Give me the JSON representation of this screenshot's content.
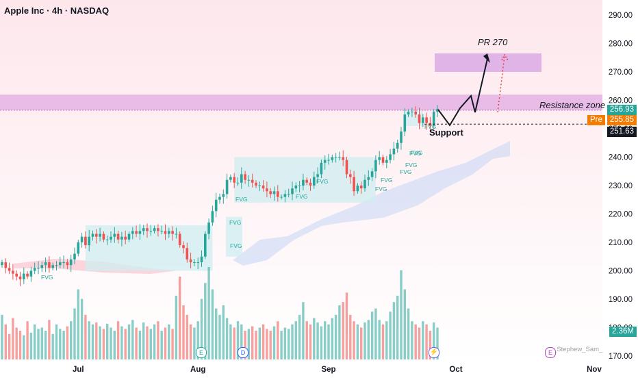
{
  "header": {
    "title": "Apple Inc · 4h · NASDAQ"
  },
  "colors": {
    "up": "#26a69a",
    "down": "#ef5350",
    "background_top": "#fde7ec",
    "resistance_zone": "#d99be0",
    "target_zone": "#d9a6e6",
    "fvg_box": "#cfeef0",
    "cloud": "#c5d5f5",
    "last_price": "#26a69a",
    "pre_market": "#f57c00",
    "support_label": "#131722"
  },
  "chart_data": {
    "type": "candlestick",
    "title": "Apple Inc · 4h · NASDAQ",
    "xlabel": "",
    "ylabel": "",
    "x_tick_labels": [
      "Jul",
      "Aug",
      "Sep",
      "Oct",
      "Nov"
    ],
    "y_tick_labels": [
      "290.00",
      "280.00",
      "270.00",
      "260.00",
      "250.00",
      "240.00",
      "230.00",
      "220.00",
      "210.00",
      "200.00",
      "190.00",
      "180.00",
      "170.00"
    ],
    "ylim": [
      170,
      292
    ],
    "grid": false,
    "series": [
      {
        "name": "AAPL",
        "close": [
          203,
          201,
          200,
          199,
          198,
          197,
          199,
          198,
          200,
          201,
          201,
          202,
          203,
          201,
          202,
          202,
          203,
          203,
          202,
          204,
          206,
          210,
          212,
          209,
          212,
          213,
          212,
          213,
          211,
          211,
          212,
          213,
          211,
          212,
          211,
          213,
          214,
          213,
          214,
          215,
          214,
          214,
          215,
          214,
          214,
          213,
          214,
          213,
          213,
          209,
          208,
          204,
          203,
          203,
          203,
          205,
          213,
          217,
          221,
          225,
          226,
          227,
          232,
          233,
          231,
          231,
          234,
          232,
          232,
          231,
          230,
          230,
          229,
          228,
          227,
          228,
          226,
          226,
          227,
          227,
          229,
          230,
          230,
          232,
          231,
          230,
          233,
          234,
          238,
          239,
          239,
          240,
          240,
          240,
          239,
          234,
          233,
          228,
          230,
          229,
          232,
          233,
          235,
          239,
          240,
          238,
          239,
          241,
          243,
          245,
          249,
          255,
          256,
          256,
          255,
          252,
          254,
          252,
          251,
          256,
          256.93
        ]
      }
    ],
    "volume": [
      70,
      55,
      40,
      65,
      50,
      45,
      38,
      60,
      42,
      55,
      48,
      50,
      45,
      62,
      40,
      55,
      48,
      45,
      52,
      60,
      80,
      110,
      95,
      70,
      60,
      55,
      58,
      52,
      48,
      56,
      50,
      45,
      60,
      52,
      48,
      55,
      62,
      50,
      45,
      58,
      52,
      48,
      55,
      60,
      45,
      50,
      55,
      48,
      100,
      130,
      85,
      70,
      55,
      50,
      60,
      95,
      120,
      145,
      110,
      80,
      70,
      85,
      65,
      55,
      50,
      60,
      55,
      45,
      48,
      52,
      45,
      50,
      55,
      48,
      45,
      52,
      60,
      45,
      50,
      48,
      55,
      60,
      70,
      90,
      60,
      55,
      65,
      58,
      52,
      60,
      55,
      65,
      70,
      85,
      90,
      105,
      70,
      60,
      55,
      50,
      58,
      62,
      75,
      80,
      62,
      55,
      60,
      75,
      90,
      100,
      140,
      110,
      80,
      60,
      55,
      50,
      60,
      55,
      45,
      58,
      50
    ],
    "volume_label": "2.36M",
    "last_price": "256.93",
    "pre_market_label": "Pre",
    "pre_market_price": "255.85",
    "support_price": "251.63",
    "resistance_zone": [
      256.5,
      262
    ],
    "target_zone": [
      270,
      276.5
    ],
    "support_level": 251.63,
    "fvg_boxes": [
      {
        "x0": 23,
        "x1": 58,
        "low": 200,
        "high": 216
      },
      {
        "x0": 64,
        "x1": 103,
        "low": 224,
        "high": 240
      },
      {
        "x0": 111,
        "x1": 116,
        "low": 251,
        "high": 256.5
      }
    ],
    "fvg_labels": [
      "FVG",
      "FVG",
      "FVG",
      "FVG",
      "FVG",
      "FVG",
      "FVG",
      "FVG",
      "FVG",
      "FVG",
      "FVG",
      "FVG",
      "FVG"
    ],
    "event_badges": [
      "E",
      "D"
    ],
    "annotations": {
      "resistance_label": "Resistance zone",
      "support_label": "Support",
      "projection_label": "PR 270",
      "signature": "_Stephew_Sam_"
    }
  }
}
